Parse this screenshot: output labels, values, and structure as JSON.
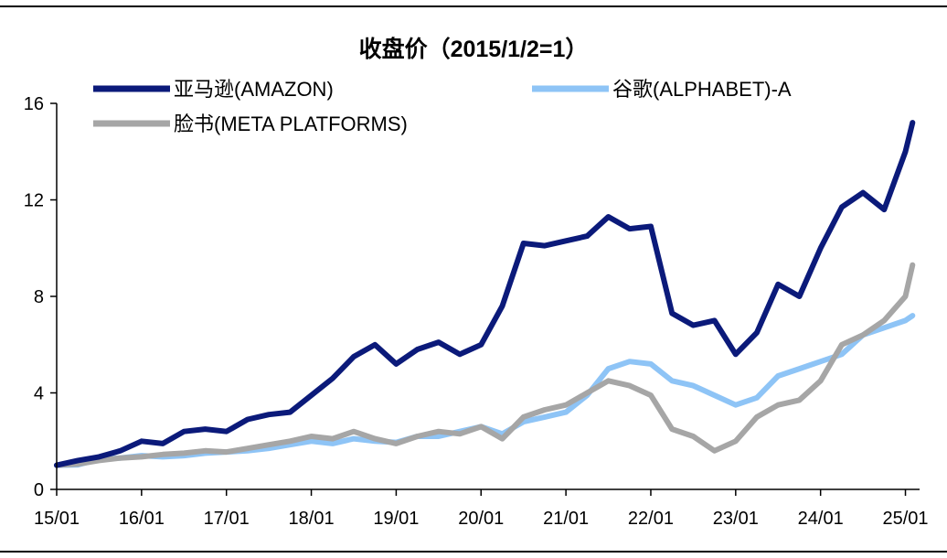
{
  "chart_data": {
    "type": "line",
    "title": "收盘价（2015/1/2=1）",
    "xlabel": "",
    "ylabel": "",
    "ylim": [
      0,
      16
    ],
    "yticks": [
      0,
      4,
      8,
      12,
      16
    ],
    "xticks": [
      "15/01",
      "16/01",
      "17/01",
      "18/01",
      "19/01",
      "20/01",
      "21/01",
      "22/01",
      "23/01",
      "24/01",
      "25/01"
    ],
    "grid": false,
    "legend_position": "top",
    "x": [
      "15/01",
      "15/04",
      "15/07",
      "15/10",
      "16/01",
      "16/04",
      "16/07",
      "16/10",
      "17/01",
      "17/04",
      "17/07",
      "17/10",
      "18/01",
      "18/04",
      "18/07",
      "18/10",
      "19/01",
      "19/04",
      "19/07",
      "19/10",
      "20/01",
      "20/04",
      "20/07",
      "20/10",
      "21/01",
      "21/04",
      "21/07",
      "21/10",
      "22/01",
      "22/04",
      "22/07",
      "22/10",
      "23/01",
      "23/04",
      "23/07",
      "23/10",
      "24/01",
      "24/04",
      "24/07",
      "24/10",
      "25/01",
      "25/02"
    ],
    "series": [
      {
        "name": "亚马逊(AMAZON)",
        "color": "#0b1a7a",
        "values": [
          1.0,
          1.2,
          1.35,
          1.6,
          2.0,
          1.9,
          2.4,
          2.5,
          2.4,
          2.9,
          3.1,
          3.2,
          3.9,
          4.6,
          5.5,
          6.0,
          5.2,
          5.8,
          6.1,
          5.6,
          6.0,
          7.6,
          10.2,
          10.1,
          10.3,
          10.5,
          11.3,
          10.8,
          10.9,
          7.3,
          6.8,
          7.0,
          5.6,
          6.5,
          8.5,
          8.0,
          10.0,
          11.7,
          12.3,
          11.6,
          14.0,
          15.2
        ]
      },
      {
        "name": "谷歌(ALPHABET)-A",
        "color": "#8ec4f6",
        "values": [
          1.0,
          1.02,
          1.25,
          1.3,
          1.4,
          1.35,
          1.4,
          1.5,
          1.55,
          1.6,
          1.7,
          1.85,
          2.0,
          1.9,
          2.1,
          2.0,
          1.95,
          2.2,
          2.2,
          2.4,
          2.6,
          2.3,
          2.8,
          3.0,
          3.2,
          3.9,
          5.0,
          5.3,
          5.2,
          4.5,
          4.3,
          3.9,
          3.5,
          3.8,
          4.7,
          5.0,
          5.3,
          5.6,
          6.4,
          6.7,
          7.0,
          7.2
        ]
      },
      {
        "name": "脸书(META PLATFORMS)",
        "color": "#a6a6a6",
        "values": [
          1.0,
          1.05,
          1.2,
          1.3,
          1.35,
          1.45,
          1.5,
          1.6,
          1.55,
          1.7,
          1.85,
          2.0,
          2.2,
          2.1,
          2.4,
          2.1,
          1.9,
          2.2,
          2.4,
          2.3,
          2.6,
          2.1,
          3.0,
          3.3,
          3.5,
          4.0,
          4.5,
          4.3,
          3.9,
          2.5,
          2.2,
          1.6,
          2.0,
          3.0,
          3.5,
          3.7,
          4.5,
          6.0,
          6.4,
          7.0,
          8.0,
          9.3
        ]
      }
    ]
  }
}
